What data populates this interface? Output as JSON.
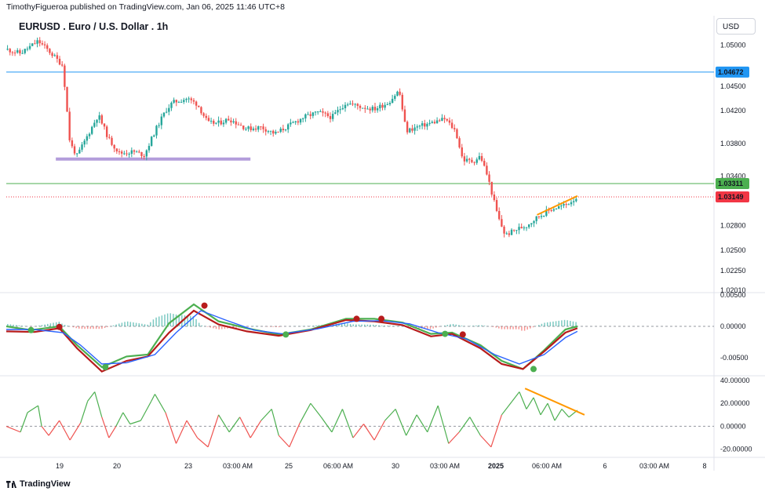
{
  "header": {
    "published": "TimothyFigueroa published on TradingView.com, Jan 06, 2025 11:46 UTC+8"
  },
  "symbol_title": "EURUSD . Euro / U.S. Dollar . 1h",
  "currency_button": "USD",
  "footer": {
    "brand": "TradingView"
  },
  "colors": {
    "up": "#26a69a",
    "down": "#ef5350",
    "hline_blue": "#2196f3",
    "hline_green": "#4caf50",
    "price_red": "#f23645",
    "macd_green": "#4caf50",
    "macd_dark": "#b71c1c",
    "signal_blue": "#2962ff",
    "support_purple": "#b39ddb",
    "trend_orange": "#ff9800"
  },
  "chart_data": [
    {
      "type": "candlestick",
      "pane": "price",
      "title": "EURUSD . Euro / U.S. Dollar . 1h",
      "x_tick_labels": [
        "19",
        "20",
        "23",
        "03:00 AM",
        "25",
        "06:00 AM",
        "30",
        "03:00 AM",
        "2025",
        "06:00 AM",
        "6",
        "03:00 AM",
        "8"
      ],
      "y_tick_labels": [
        "1.05000",
        "1.04500",
        "1.04200",
        "1.03800",
        "1.03400",
        "1.02800",
        "1.02500",
        "1.02250",
        "1.02010"
      ],
      "ylim": [
        1.0201,
        1.0512
      ],
      "horizontal_lines": [
        {
          "label": "1.04672",
          "value": 1.04672,
          "color": "#2196f3"
        },
        {
          "label": "1.03311",
          "value": 1.03311,
          "color": "#4caf50"
        },
        {
          "label": "1.03149",
          "value": 1.03149,
          "color": "#f23645",
          "style": "dotted"
        }
      ],
      "annotations": [
        {
          "kind": "support-zone",
          "value": 1.0361,
          "from": 0.07,
          "to": 0.345,
          "color": "#b39ddb"
        },
        {
          "kind": "rising-trendline",
          "from": [
            0.75,
            1.0293
          ],
          "to": [
            0.807,
            1.0316
          ],
          "color": "#ff9800"
        }
      ],
      "price_path": [
        [
          0.0,
          1.0495
        ],
        [
          0.02,
          1.049
        ],
        [
          0.045,
          1.0505
        ],
        [
          0.06,
          1.0493
        ],
        [
          0.08,
          1.0475
        ],
        [
          0.09,
          1.038
        ],
        [
          0.1,
          1.0365
        ],
        [
          0.115,
          1.039
        ],
        [
          0.13,
          1.0415
        ],
        [
          0.145,
          1.0385
        ],
        [
          0.16,
          1.0368
        ],
        [
          0.18,
          1.037
        ],
        [
          0.195,
          1.0366
        ],
        [
          0.21,
          1.0395
        ],
        [
          0.225,
          1.042
        ],
        [
          0.235,
          1.043
        ],
        [
          0.255,
          1.0435
        ],
        [
          0.27,
          1.0428
        ],
        [
          0.285,
          1.0405
        ],
        [
          0.3,
          1.0405
        ],
        [
          0.315,
          1.041
        ],
        [
          0.34,
          1.0398
        ],
        [
          0.36,
          1.04
        ],
        [
          0.38,
          1.0392
        ],
        [
          0.4,
          1.0402
        ],
        [
          0.42,
          1.0412
        ],
        [
          0.44,
          1.0418
        ],
        [
          0.46,
          1.0412
        ],
        [
          0.48,
          1.043
        ],
        [
          0.5,
          1.0425
        ],
        [
          0.52,
          1.0422
        ],
        [
          0.54,
          1.043
        ],
        [
          0.555,
          1.0445
        ],
        [
          0.565,
          1.0395
        ],
        [
          0.58,
          1.04
        ],
        [
          0.6,
          1.0405
        ],
        [
          0.62,
          1.041
        ],
        [
          0.635,
          1.0395
        ],
        [
          0.645,
          1.036
        ],
        [
          0.66,
          1.0358
        ],
        [
          0.67,
          1.0365
        ],
        [
          0.68,
          1.034
        ],
        [
          0.695,
          1.029
        ],
        [
          0.705,
          1.0268
        ],
        [
          0.72,
          1.0275
        ],
        [
          0.735,
          1.028
        ],
        [
          0.75,
          1.029
        ],
        [
          0.77,
          1.03
        ],
        [
          0.79,
          1.0305
        ],
        [
          0.807,
          1.0315
        ]
      ]
    },
    {
      "type": "line",
      "pane": "macd",
      "y_tick_labels": [
        "0.00500",
        "0.00000",
        "-0.00500"
      ],
      "ylim": [
        -0.0075,
        0.005
      ],
      "series": [
        {
          "color": "#4caf50",
          "points": [
            [
              0.0,
              0.0
            ],
            [
              0.035,
              -0.0006
            ],
            [
              0.075,
              0.0
            ],
            [
              0.1,
              -0.003
            ],
            [
              0.135,
              -0.0065
            ],
            [
              0.17,
              -0.0048
            ],
            [
              0.2,
              -0.0045
            ],
            [
              0.23,
              0.0005
            ],
            [
              0.265,
              0.0035
            ],
            [
              0.3,
              0.0008
            ],
            [
              0.34,
              -0.0003
            ],
            [
              0.385,
              -0.0013
            ],
            [
              0.43,
              -0.0005
            ],
            [
              0.48,
              0.0012
            ],
            [
              0.52,
              0.0012
            ],
            [
              0.56,
              0.0006
            ],
            [
              0.6,
              -0.0012
            ],
            [
              0.63,
              -0.001
            ],
            [
              0.67,
              -0.003
            ],
            [
              0.7,
              -0.0055
            ],
            [
              0.73,
              -0.0068
            ],
            [
              0.76,
              -0.0038
            ],
            [
              0.79,
              -0.0005
            ],
            [
              0.807,
              0.0
            ]
          ]
        },
        {
          "color": "#b71c1c",
          "points": [
            [
              0.0,
              -0.0008
            ],
            [
              0.04,
              -0.0009
            ],
            [
              0.075,
              -0.0003
            ],
            [
              0.1,
              -0.0035
            ],
            [
              0.135,
              -0.0072
            ],
            [
              0.17,
              -0.0055
            ],
            [
              0.2,
              -0.0048
            ],
            [
              0.23,
              -0.001
            ],
            [
              0.265,
              0.0025
            ],
            [
              0.3,
              0.0003
            ],
            [
              0.34,
              -0.0008
            ],
            [
              0.385,
              -0.0015
            ],
            [
              0.43,
              -0.0006
            ],
            [
              0.48,
              0.001
            ],
            [
              0.52,
              0.0008
            ],
            [
              0.56,
              0.0002
            ],
            [
              0.6,
              -0.0016
            ],
            [
              0.63,
              -0.0012
            ],
            [
              0.67,
              -0.0035
            ],
            [
              0.7,
              -0.006
            ],
            [
              0.73,
              -0.0068
            ],
            [
              0.76,
              -0.004
            ],
            [
              0.79,
              -0.001
            ],
            [
              0.807,
              -0.0003
            ]
          ]
        },
        {
          "color": "#2962ff",
          "points": [
            [
              0.0,
              -0.0005
            ],
            [
              0.04,
              -0.0005
            ],
            [
              0.08,
              -0.001
            ],
            [
              0.105,
              -0.003
            ],
            [
              0.135,
              -0.006
            ],
            [
              0.17,
              -0.0058
            ],
            [
              0.21,
              -0.0045
            ],
            [
              0.24,
              -0.001
            ],
            [
              0.275,
              0.0025
            ],
            [
              0.31,
              0.001
            ],
            [
              0.35,
              -0.0006
            ],
            [
              0.39,
              -0.0012
            ],
            [
              0.44,
              -0.0004
            ],
            [
              0.49,
              0.0008
            ],
            [
              0.53,
              0.0009
            ],
            [
              0.57,
              0.0004
            ],
            [
              0.61,
              -0.001
            ],
            [
              0.65,
              -0.002
            ],
            [
              0.69,
              -0.0045
            ],
            [
              0.725,
              -0.006
            ],
            [
              0.76,
              -0.0045
            ],
            [
              0.79,
              -0.0018
            ],
            [
              0.807,
              -0.0008
            ]
          ]
        }
      ],
      "signal_dots": [
        {
          "x": 0.035,
          "y": -0.0006,
          "color": "#4caf50"
        },
        {
          "x": 0.075,
          "y": -0.0001,
          "color": "#b71c1c"
        },
        {
          "x": 0.14,
          "y": -0.0065,
          "color": "#4caf50"
        },
        {
          "x": 0.28,
          "y": 0.0033,
          "color": "#b71c1c"
        },
        {
          "x": 0.395,
          "y": -0.0013,
          "color": "#4caf50"
        },
        {
          "x": 0.495,
          "y": 0.0012,
          "color": "#b71c1c"
        },
        {
          "x": 0.53,
          "y": 0.0012,
          "color": "#b71c1c"
        },
        {
          "x": 0.62,
          "y": -0.0012,
          "color": "#4caf50"
        },
        {
          "x": 0.645,
          "y": -0.0013,
          "color": "#b71c1c"
        },
        {
          "x": 0.745,
          "y": -0.0068,
          "color": "#4caf50"
        }
      ]
    },
    {
      "type": "line",
      "pane": "oscillator",
      "y_tick_labels": [
        "40.00000",
        "20.00000",
        "0.00000",
        "-20.00000"
      ],
      "ylim": [
        -25,
        42
      ],
      "series": [
        {
          "colors": {
            "positive": "#4caf50",
            "negative": "#ef5350"
          },
          "points": [
            [
              0.0,
              0
            ],
            [
              0.02,
              -5
            ],
            [
              0.03,
              12
            ],
            [
              0.045,
              18
            ],
            [
              0.05,
              0
            ],
            [
              0.06,
              -8
            ],
            [
              0.075,
              5
            ],
            [
              0.09,
              -12
            ],
            [
              0.105,
              3
            ],
            [
              0.115,
              22
            ],
            [
              0.125,
              30
            ],
            [
              0.135,
              8
            ],
            [
              0.145,
              -10
            ],
            [
              0.155,
              0
            ],
            [
              0.165,
              12
            ],
            [
              0.175,
              2
            ],
            [
              0.19,
              5
            ],
            [
              0.205,
              22
            ],
            [
              0.21,
              28
            ],
            [
              0.225,
              12
            ],
            [
              0.24,
              -15
            ],
            [
              0.255,
              5
            ],
            [
              0.27,
              -10
            ],
            [
              0.285,
              -18
            ],
            [
              0.3,
              10
            ],
            [
              0.315,
              -5
            ],
            [
              0.33,
              8
            ],
            [
              0.345,
              -10
            ],
            [
              0.36,
              5
            ],
            [
              0.375,
              15
            ],
            [
              0.385,
              -8
            ],
            [
              0.4,
              -18
            ],
            [
              0.415,
              3
            ],
            [
              0.43,
              20
            ],
            [
              0.445,
              8
            ],
            [
              0.46,
              -5
            ],
            [
              0.475,
              15
            ],
            [
              0.49,
              -10
            ],
            [
              0.505,
              2
            ],
            [
              0.52,
              -12
            ],
            [
              0.535,
              5
            ],
            [
              0.55,
              15
            ],
            [
              0.565,
              -8
            ],
            [
              0.58,
              10
            ],
            [
              0.595,
              -5
            ],
            [
              0.61,
              18
            ],
            [
              0.625,
              -15
            ],
            [
              0.64,
              -5
            ],
            [
              0.655,
              8
            ],
            [
              0.67,
              -8
            ],
            [
              0.685,
              -18
            ],
            [
              0.7,
              10
            ],
            [
              0.715,
              22
            ],
            [
              0.725,
              30
            ],
            [
              0.735,
              15
            ],
            [
              0.745,
              25
            ],
            [
              0.755,
              10
            ],
            [
              0.765,
              20
            ],
            [
              0.775,
              5
            ],
            [
              0.785,
              15
            ],
            [
              0.795,
              8
            ],
            [
              0.807,
              14
            ]
          ]
        }
      ],
      "annotations": [
        {
          "kind": "falling-trendline",
          "from": [
            0.733,
            33
          ],
          "to": [
            0.817,
            10
          ],
          "color": "#ff9800"
        }
      ]
    }
  ]
}
